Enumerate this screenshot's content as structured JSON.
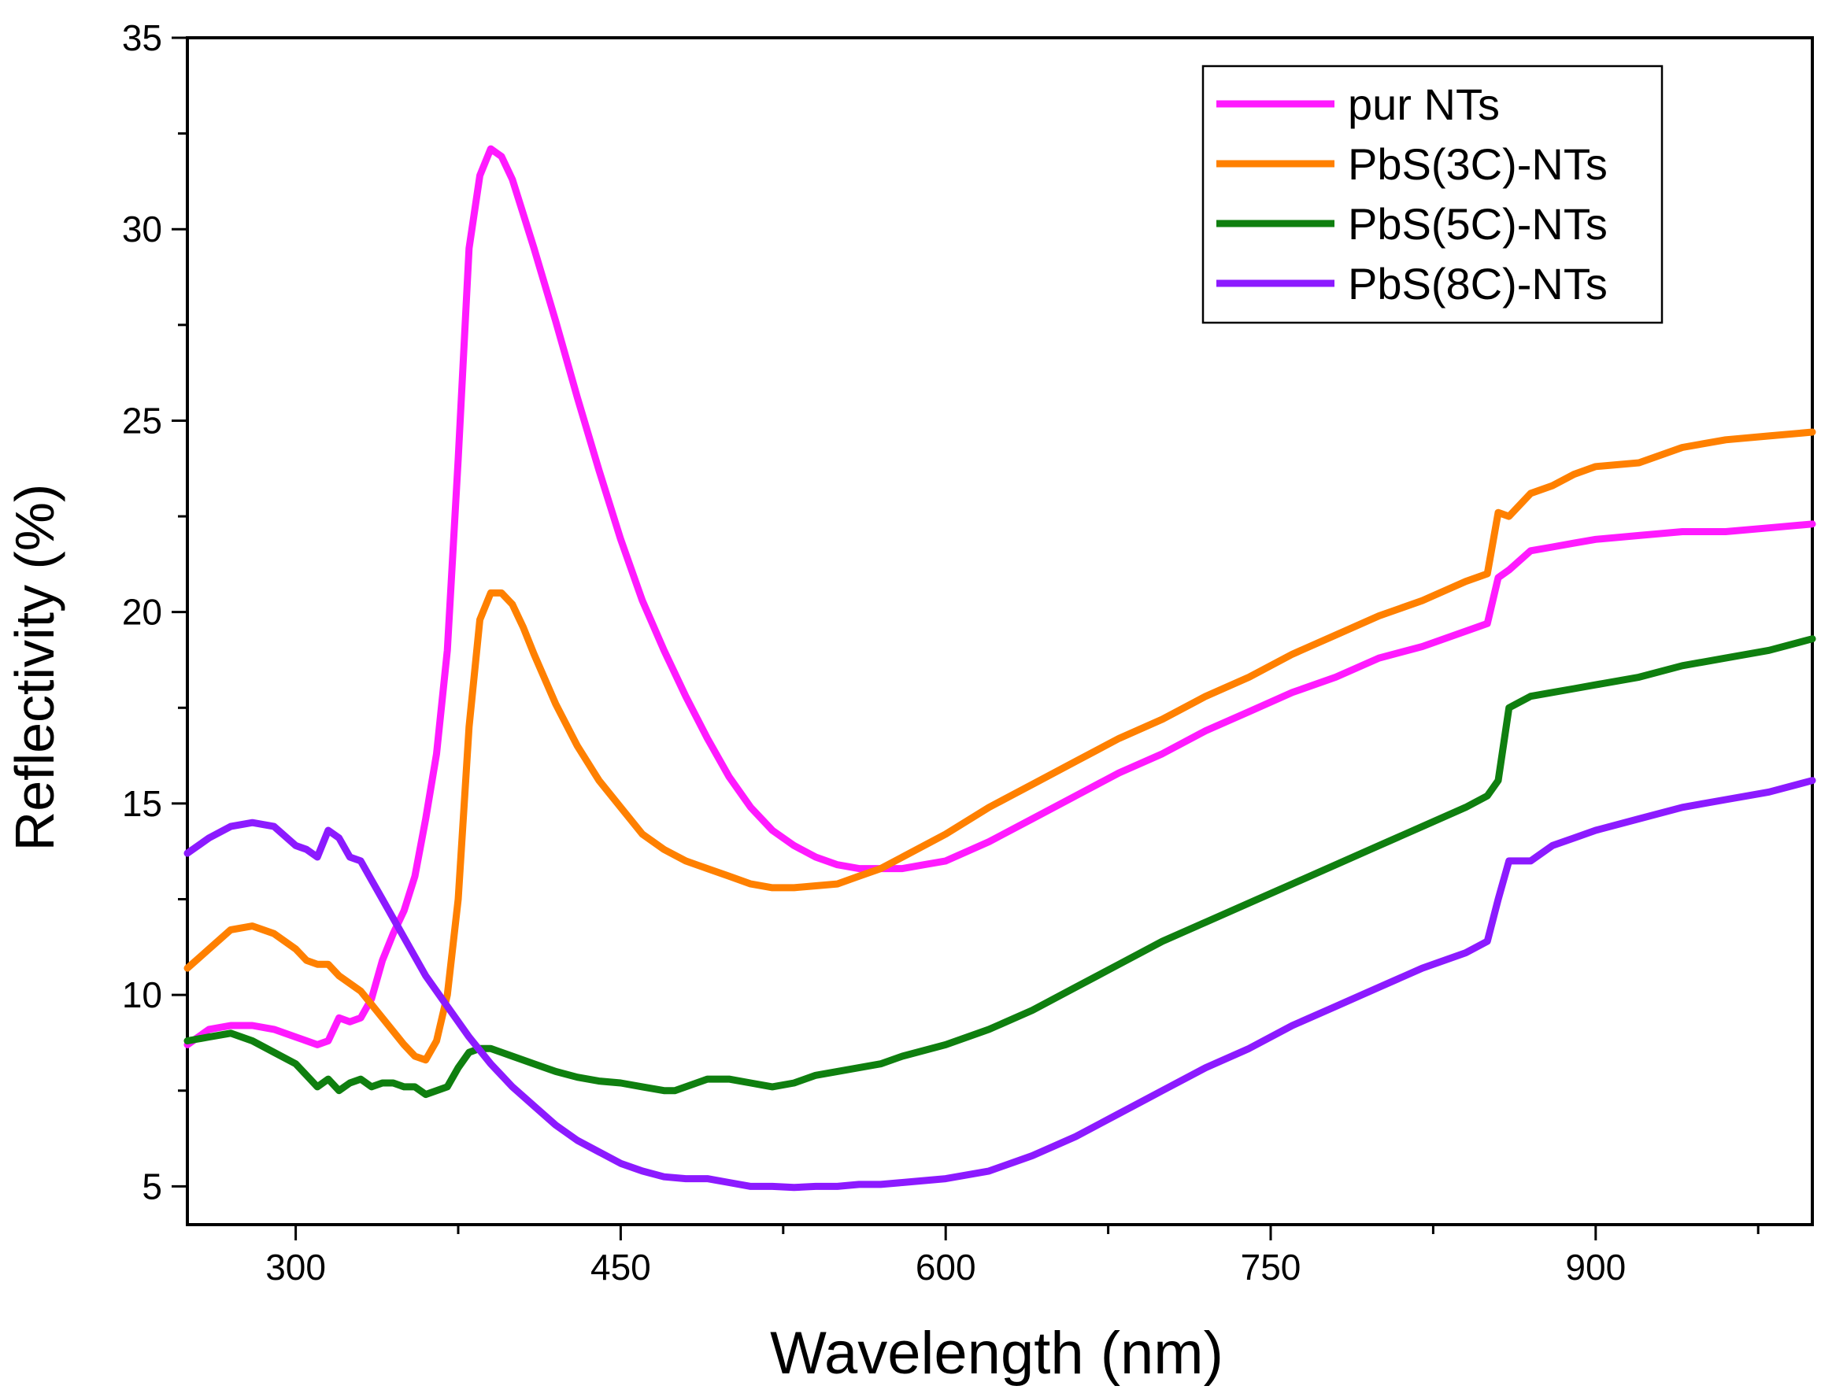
{
  "chart_data": {
    "type": "line",
    "title": "",
    "xlabel": "Wavelength (nm)",
    "ylabel": "Reflectivity (%)",
    "xlim": [
      250,
      1000
    ],
    "ylim": [
      4,
      35
    ],
    "xticks": [
      300,
      450,
      600,
      750,
      900
    ],
    "xtick_labels": [
      "300",
      "450",
      "600",
      "750",
      "900"
    ],
    "yticks": [
      5,
      10,
      15,
      20,
      25,
      30,
      35
    ],
    "ytick_labels": [
      "5",
      "10",
      "15",
      "20",
      "25",
      "30",
      "35"
    ],
    "grid": false,
    "legend_position": "top-right",
    "series": [
      {
        "name": "pur NTs",
        "color": "#ff1aff",
        "x": [
          250,
          260,
          270,
          280,
          290,
          300,
          305,
          310,
          315,
          320,
          325,
          330,
          335,
          340,
          345,
          350,
          355,
          360,
          365,
          370,
          375,
          380,
          385,
          390,
          395,
          400,
          405,
          410,
          420,
          430,
          440,
          450,
          460,
          470,
          480,
          490,
          500,
          510,
          520,
          530,
          540,
          550,
          560,
          570,
          580,
          590,
          600,
          620,
          640,
          660,
          680,
          700,
          720,
          740,
          760,
          780,
          800,
          820,
          840,
          850,
          855,
          860,
          870,
          880,
          890,
          900,
          920,
          940,
          960,
          980,
          1000
        ],
        "y": [
          8.7,
          9.1,
          9.2,
          9.2,
          9.1,
          8.9,
          8.8,
          8.7,
          8.8,
          9.4,
          9.3,
          9.4,
          9.9,
          10.9,
          11.6,
          12.2,
          13.1,
          14.6,
          16.3,
          19.0,
          24.0,
          29.5,
          31.4,
          32.1,
          31.9,
          31.3,
          30.4,
          29.5,
          27.6,
          25.6,
          23.7,
          21.9,
          20.3,
          19.0,
          17.8,
          16.7,
          15.7,
          14.9,
          14.3,
          13.9,
          13.6,
          13.4,
          13.3,
          13.3,
          13.3,
          13.4,
          13.5,
          14.0,
          14.6,
          15.2,
          15.8,
          16.3,
          16.9,
          17.4,
          17.9,
          18.3,
          18.8,
          19.1,
          19.5,
          19.7,
          20.9,
          21.1,
          21.6,
          21.7,
          21.8,
          21.9,
          22.0,
          22.1,
          22.1,
          22.2,
          22.3
        ]
      },
      {
        "name": "PbS(3C)-NTs",
        "color": "#ff8000",
        "x": [
          250,
          260,
          270,
          280,
          290,
          300,
          305,
          310,
          315,
          320,
          330,
          340,
          350,
          355,
          360,
          365,
          370,
          375,
          380,
          385,
          390,
          395,
          400,
          405,
          410,
          420,
          430,
          440,
          450,
          460,
          470,
          480,
          490,
          500,
          510,
          520,
          530,
          540,
          550,
          560,
          570,
          580,
          600,
          620,
          640,
          660,
          680,
          700,
          720,
          740,
          760,
          780,
          800,
          820,
          840,
          850,
          855,
          860,
          870,
          880,
          890,
          900,
          920,
          940,
          960,
          980,
          1000
        ],
        "y": [
          10.7,
          11.2,
          11.7,
          11.8,
          11.6,
          11.2,
          10.9,
          10.8,
          10.8,
          10.5,
          10.1,
          9.4,
          8.7,
          8.4,
          8.3,
          8.8,
          10.0,
          12.5,
          17.0,
          19.8,
          20.5,
          20.5,
          20.2,
          19.6,
          18.9,
          17.6,
          16.5,
          15.6,
          14.9,
          14.2,
          13.8,
          13.5,
          13.3,
          13.1,
          12.9,
          12.8,
          12.8,
          12.85,
          12.9,
          13.1,
          13.3,
          13.6,
          14.2,
          14.9,
          15.5,
          16.1,
          16.7,
          17.2,
          17.8,
          18.3,
          18.9,
          19.4,
          19.9,
          20.3,
          20.8,
          21.0,
          22.6,
          22.5,
          23.1,
          23.3,
          23.6,
          23.8,
          23.9,
          24.3,
          24.5,
          24.6,
          24.7
        ]
      },
      {
        "name": "PbS(5C)-NTs",
        "color": "#0f7f0f",
        "x": [
          250,
          260,
          270,
          280,
          290,
          300,
          305,
          310,
          315,
          320,
          325,
          330,
          335,
          340,
          345,
          350,
          355,
          360,
          365,
          370,
          375,
          380,
          385,
          390,
          400,
          410,
          420,
          430,
          440,
          450,
          460,
          470,
          475,
          480,
          490,
          500,
          510,
          520,
          530,
          540,
          550,
          560,
          570,
          580,
          600,
          620,
          640,
          660,
          680,
          700,
          720,
          740,
          760,
          780,
          800,
          820,
          840,
          850,
          855,
          860,
          870,
          880,
          890,
          900,
          920,
          940,
          960,
          980,
          1000
        ],
        "y": [
          8.8,
          8.9,
          9.0,
          8.8,
          8.5,
          8.2,
          7.9,
          7.6,
          7.8,
          7.5,
          7.7,
          7.8,
          7.6,
          7.7,
          7.7,
          7.6,
          7.6,
          7.4,
          7.5,
          7.6,
          8.1,
          8.5,
          8.6,
          8.6,
          8.4,
          8.2,
          8.0,
          7.85,
          7.75,
          7.7,
          7.6,
          7.5,
          7.5,
          7.6,
          7.8,
          7.8,
          7.7,
          7.6,
          7.7,
          7.9,
          8.0,
          8.1,
          8.2,
          8.4,
          8.7,
          9.1,
          9.6,
          10.2,
          10.8,
          11.4,
          11.9,
          12.4,
          12.9,
          13.4,
          13.9,
          14.4,
          14.9,
          15.2,
          15.6,
          17.5,
          17.8,
          17.9,
          18.0,
          18.1,
          18.3,
          18.6,
          18.8,
          19.0,
          19.3
        ]
      },
      {
        "name": "PbS(8C)-NTs",
        "color": "#8c1aff",
        "x": [
          250,
          260,
          270,
          280,
          290,
          300,
          305,
          310,
          315,
          320,
          325,
          330,
          335,
          340,
          350,
          360,
          370,
          380,
          390,
          400,
          410,
          420,
          430,
          440,
          450,
          460,
          470,
          480,
          490,
          500,
          510,
          520,
          530,
          540,
          550,
          560,
          570,
          580,
          600,
          620,
          640,
          660,
          680,
          700,
          720,
          740,
          760,
          780,
          800,
          820,
          840,
          850,
          855,
          860,
          870,
          880,
          890,
          900,
          920,
          940,
          960,
          980,
          1000
        ],
        "y": [
          13.7,
          14.1,
          14.4,
          14.5,
          14.4,
          13.9,
          13.8,
          13.6,
          14.3,
          14.1,
          13.6,
          13.5,
          13.0,
          12.5,
          11.5,
          10.5,
          9.7,
          8.9,
          8.2,
          7.6,
          7.1,
          6.6,
          6.2,
          5.9,
          5.6,
          5.4,
          5.25,
          5.2,
          5.2,
          5.1,
          5.0,
          5.0,
          4.97,
          5.0,
          5.0,
          5.05,
          5.05,
          5.1,
          5.2,
          5.4,
          5.8,
          6.3,
          6.9,
          7.5,
          8.1,
          8.6,
          9.2,
          9.7,
          10.2,
          10.7,
          11.1,
          11.4,
          12.5,
          13.5,
          13.5,
          13.9,
          14.1,
          14.3,
          14.6,
          14.9,
          15.1,
          15.3,
          15.6
        ]
      }
    ]
  }
}
